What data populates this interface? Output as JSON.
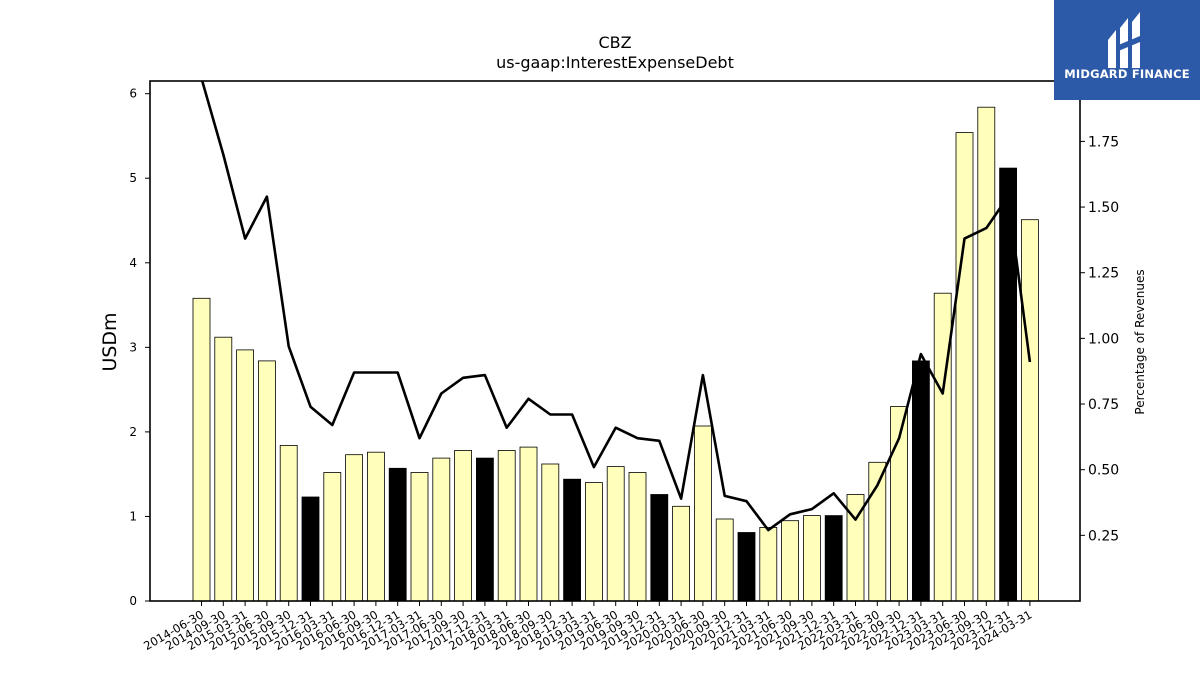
{
  "logo": {
    "text": "MIDGARD FINANCE",
    "icon": "midgard-logo-icon",
    "background": "#2d5aa8"
  },
  "chart_data": {
    "type": "bar",
    "title": "CBZ",
    "subtitle": "us-gaap:InterestExpenseDebt",
    "ylabel": "USDm",
    "y2label": "Percentage of Revenues",
    "ylim": [
      0,
      6.15
    ],
    "y2lim": [
      0,
      1.98
    ],
    "yticks": [
      "0",
      "1",
      "2",
      "3",
      "4",
      "5",
      "6"
    ],
    "y2ticks": [
      "0.25",
      "0.50",
      "0.75",
      "1.00",
      "1.25",
      "1.50",
      "1.75"
    ],
    "colors": {
      "bar": "#ffffbb",
      "highlight": "#000000",
      "line": "#000000"
    },
    "categories": [
      "2014-06-30",
      "2014-09-30",
      "2015-03-31",
      "2015-06-30",
      "2015-09-30",
      "2015-12-31",
      "2016-03-31",
      "2016-06-30",
      "2016-09-30",
      "2016-12-31",
      "2017-03-31",
      "2017-06-30",
      "2017-09-30",
      "2017-12-31",
      "2018-03-31",
      "2018-06-30",
      "2018-09-30",
      "2018-12-31",
      "2019-03-31",
      "2019-06-30",
      "2019-09-30",
      "2019-12-31",
      "2020-03-31",
      "2020-06-30",
      "2020-09-30",
      "2020-12-31",
      "2021-03-31",
      "2021-06-30",
      "2021-09-30",
      "2021-12-31",
      "2022-03-31",
      "2022-06-30",
      "2022-09-30",
      "2022-12-31",
      "2023-03-31",
      "2023-06-30",
      "2023-09-30",
      "2023-12-31",
      "2024-03-31"
    ],
    "series": [
      {
        "values": [
          3.58,
          3.12,
          2.97,
          2.84,
          1.84,
          1.23,
          1.52,
          1.73,
          1.76,
          1.57,
          1.52,
          1.69,
          1.78,
          1.69,
          1.78,
          1.82,
          1.62,
          1.44,
          1.4,
          1.59,
          1.52,
          1.26,
          1.12,
          2.07,
          0.97,
          0.81,
          0.87,
          0.95,
          1.01,
          1.01,
          1.26,
          1.64,
          2.3,
          2.84,
          3.64,
          5.54,
          5.84,
          5.12,
          4.51
        ],
        "highlight": [
          false,
          false,
          false,
          false,
          false,
          true,
          false,
          false,
          false,
          true,
          false,
          false,
          false,
          true,
          false,
          false,
          false,
          true,
          false,
          false,
          false,
          true,
          false,
          false,
          false,
          true,
          false,
          false,
          false,
          true,
          false,
          false,
          false,
          true,
          false,
          false,
          false,
          true,
          false
        ]
      },
      {
        "axis": "right",
        "values": [
          1.99,
          1.7,
          1.38,
          1.54,
          0.97,
          0.74,
          0.67,
          0.87,
          0.87,
          0.87,
          0.62,
          0.79,
          0.85,
          0.86,
          0.66,
          0.77,
          0.71,
          0.71,
          0.51,
          0.66,
          0.62,
          0.61,
          0.39,
          0.86,
          0.4,
          0.38,
          0.27,
          0.33,
          0.35,
          0.41,
          0.31,
          0.44,
          0.62,
          0.94,
          0.79,
          1.38,
          1.42,
          1.54,
          0.91
        ]
      }
    ]
  }
}
